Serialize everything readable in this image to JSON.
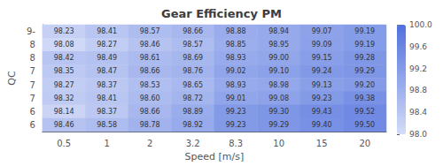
{
  "chart_data": {
    "type": "heatmap",
    "title": "Gear Efficiency PM",
    "xlabel": "Speed [m/s]",
    "ylabel": "QC",
    "x_categories": [
      "0.5",
      "1",
      "2",
      "3.2",
      "8.3",
      "10",
      "15",
      "20"
    ],
    "y_categories": [
      "9-",
      "8",
      "8",
      "7",
      "7",
      "7",
      "6",
      "6"
    ],
    "values": [
      [
        98.23,
        98.41,
        98.57,
        98.66,
        98.88,
        98.94,
        99.07,
        99.19
      ],
      [
        98.08,
        98.27,
        98.46,
        98.57,
        98.85,
        98.95,
        99.09,
        99.19
      ],
      [
        98.42,
        98.49,
        98.61,
        98.69,
        98.93,
        99.0,
        99.15,
        99.28
      ],
      [
        98.35,
        98.47,
        98.66,
        98.76,
        99.02,
        99.1,
        99.24,
        99.29
      ],
      [
        98.27,
        98.37,
        98.53,
        98.65,
        98.93,
        98.98,
        99.13,
        99.2
      ],
      [
        98.32,
        98.41,
        98.6,
        98.72,
        99.01,
        99.08,
        99.23,
        99.38
      ],
      [
        98.14,
        98.37,
        98.66,
        98.89,
        99.23,
        99.3,
        99.43,
        99.52
      ],
      [
        98.46,
        98.58,
        98.78,
        98.92,
        99.23,
        99.29,
        99.4,
        99.5
      ]
    ],
    "value_labels": [
      [
        "98.23",
        "98.41",
        "98.57",
        "98.66",
        "98.88",
        "98.94",
        "99.07",
        "99.19"
      ],
      [
        "98.08",
        "98.27",
        "98.46",
        "98.57",
        "98.85",
        "98.95",
        "99.09",
        "99.19"
      ],
      [
        "98.42",
        "98.49",
        "98.61",
        "98.69",
        "98.93",
        "99.00",
        "99.15",
        "99.28"
      ],
      [
        "98.35",
        "98.47",
        "98.66",
        "98.76",
        "99.02",
        "99.10",
        "99.24",
        "99.29"
      ],
      [
        "98.27",
        "98.37",
        "98.53",
        "98.65",
        "98.93",
        "98.98",
        "99.13",
        "99.20"
      ],
      [
        "98.32",
        "98.41",
        "98.60",
        "98.72",
        "99.01",
        "99.08",
        "99.23",
        "99.38"
      ],
      [
        "98.14",
        "98.37",
        "98.66",
        "98.89",
        "99.23",
        "99.30",
        "99.43",
        "99.52"
      ],
      [
        "98.46",
        "98.58",
        "98.78",
        "98.92",
        "99.23",
        "99.29",
        "99.40",
        "99.50"
      ]
    ],
    "data_labels": true,
    "colorbar_range": [
      98.0,
      100.0
    ],
    "colorbar_ticks": [
      {
        "value": 98.0,
        "label": "98.0"
      },
      {
        "value": 98.4,
        "label": "98.4"
      },
      {
        "value": 98.8,
        "label": "98.8"
      },
      {
        "value": 99.2,
        "label": "99.2"
      },
      {
        "value": 99.6,
        "label": "99.6"
      },
      {
        "value": 100.0,
        "label": "100.0"
      }
    ]
  }
}
